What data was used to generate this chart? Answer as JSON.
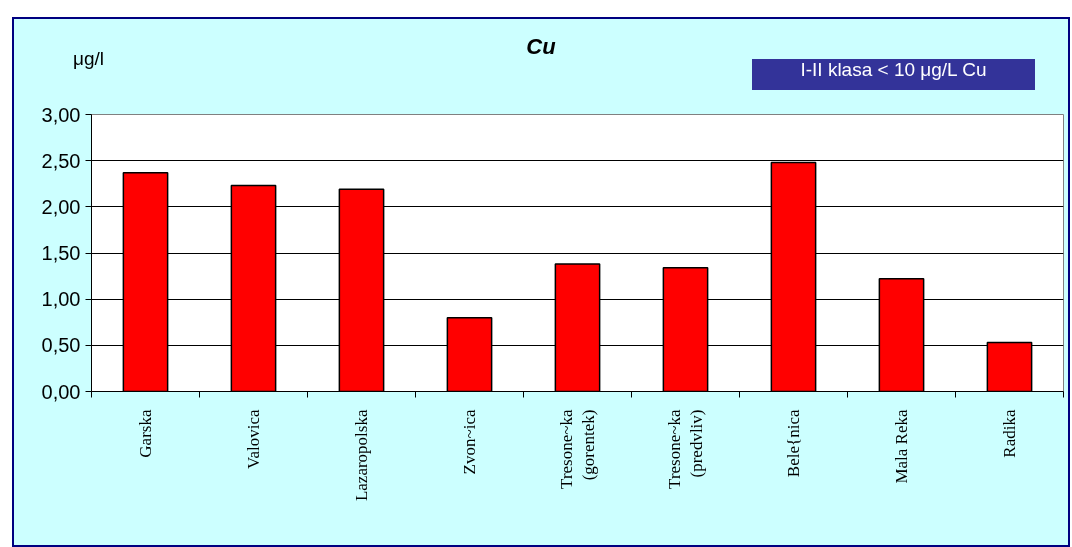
{
  "chart_data": {
    "type": "bar",
    "title": "Cu",
    "ylabel": "μg/l",
    "annotations": [
      "I-II klasa < 10 μg/L Cu"
    ],
    "categories": [
      "Garska",
      "Valovica",
      "Lazaropolska",
      "Zvon~ica",
      "Tresone~ka\n(gorentek)",
      "Tresone~ka\n(predvliv)",
      "Bele{nica",
      "Mala Reka",
      "Radika"
    ],
    "values": [
      2.37,
      2.23,
      2.19,
      0.8,
      1.38,
      1.34,
      2.48,
      1.22,
      0.53
    ],
    "color": "#ff0000",
    "ylim": [
      0,
      3
    ],
    "yticks": [
      {
        "value": 0,
        "label": "0,00"
      },
      {
        "value": 0.5,
        "label": "0,50"
      },
      {
        "value": 1,
        "label": "1,00"
      },
      {
        "value": 1.5,
        "label": "1,50"
      },
      {
        "value": 2,
        "label": "2,00"
      },
      {
        "value": 2.5,
        "label": "2,50"
      },
      {
        "value": 3,
        "label": "3,00"
      }
    ],
    "grid": "y"
  }
}
